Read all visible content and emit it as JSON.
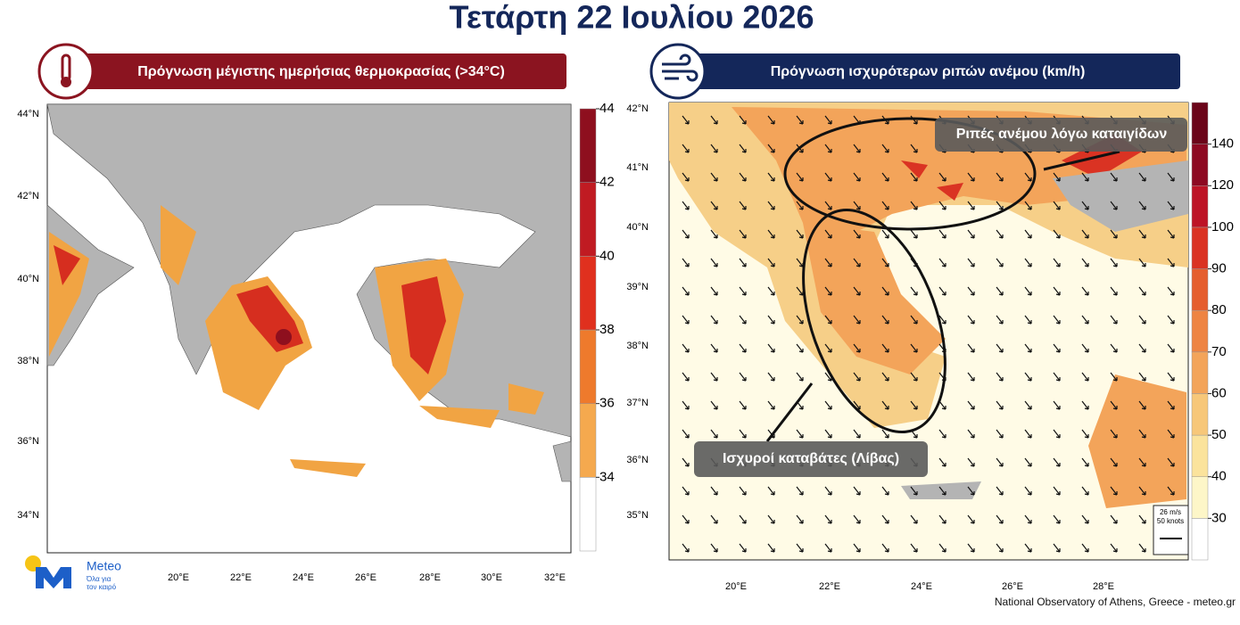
{
  "header": {
    "title": "Τετάρτη 22 Ιουλίου 2026"
  },
  "panels": [
    {
      "title": "Πρόγνωση μέγιστης ημερήσιας θερμοκρασίας (>34°C)",
      "lat_labels": [
        "44°N",
        "42°N",
        "40°N",
        "38°N",
        "36°N",
        "34°N"
      ],
      "lon_labels": [
        "20°E",
        "22°E",
        "24°E",
        "26°E",
        "28°E",
        "30°E",
        "32°E"
      ],
      "colorbar": {
        "ticks": [
          34,
          36,
          38,
          40,
          42,
          44
        ],
        "colors": [
          "#ffffff",
          "#f5a94e",
          "#ee7a2c",
          "#e0301e",
          "#c01b22",
          "#8e0f1e"
        ]
      }
    },
    {
      "title": "Πρόγνωση ισχυρότερων ριπών ανέμου (km/h)",
      "lat_labels": [
        "42°N",
        "41°N",
        "40°N",
        "39°N",
        "38°N",
        "37°N",
        "36°N",
        "35°N"
      ],
      "lon_labels": [
        "20°E",
        "22°E",
        "24°E",
        "26°E",
        "28°E"
      ],
      "colorbar": {
        "ticks": [
          30,
          40,
          50,
          60,
          70,
          80,
          90,
          100,
          120,
          140
        ],
        "colors": [
          "#ffffff",
          "#fdf6c8",
          "#fbe39c",
          "#f7c779",
          "#f3a45a",
          "#ee8443",
          "#e55e2e",
          "#da3323",
          "#bd1426",
          "#8d0a22",
          "#6b0519"
        ]
      },
      "annotations": [
        "Ριπές ανέμου λόγω καταιγίδων",
        "Ισχυροί καταβάτες (Λίβας)"
      ],
      "vector_legend": [
        "26 m/s",
        "50 knots"
      ]
    }
  ],
  "logo": {
    "name": "Meteo",
    "slogan": [
      "Όλα για",
      "τον καιρό"
    ]
  },
  "footer": "National Observatory of Athens, Greece - meteo.gr"
}
